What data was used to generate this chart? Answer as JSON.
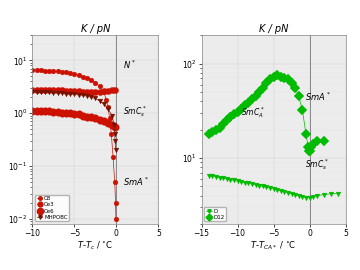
{
  "panel1": {
    "title": "K / pN",
    "xlabel": "T–Tₙ / °C",
    "xlim": [
      -10,
      5
    ],
    "ylim_log": [
      0.008,
      30
    ],
    "xticks": [
      -10,
      -5,
      0,
      5
    ],
    "yticks": [
      0.01,
      0.1,
      1,
      10
    ],
    "series": {
      "C8": {
        "color": "#cc1100",
        "marker": "o",
        "markersize": 3.5,
        "x": [
          -10,
          -9.5,
          -9,
          -8.5,
          -8,
          -7.5,
          -7,
          -6.5,
          -6,
          -5.5,
          -5,
          -4.5,
          -4,
          -3.5,
          -3,
          -2.5,
          -2,
          -1.5,
          -1.2,
          -1.0,
          -0.8,
          -0.6,
          -0.4,
          -0.2,
          -0.1,
          -0.05
        ],
        "y": [
          6.5,
          6.6,
          6.5,
          6.4,
          6.4,
          6.3,
          6.2,
          6.1,
          5.9,
          5.7,
          5.5,
          5.2,
          4.9,
          4.6,
          4.2,
          3.8,
          3.2,
          2.5,
          1.8,
          1.3,
          0.8,
          0.4,
          0.15,
          0.05,
          0.02,
          0.01
        ]
      },
      "Ce3": {
        "color": "#cc1100",
        "marker": "o",
        "markersize": 4.5,
        "x": [
          -10,
          -9.5,
          -9,
          -8.5,
          -8,
          -7.5,
          -7,
          -6.5,
          -6,
          -5.5,
          -5,
          -4.5,
          -4,
          -3.5,
          -3,
          -2.5,
          -2,
          -1.5,
          -1,
          -0.5,
          -0.2
        ],
        "y": [
          2.7,
          2.7,
          2.8,
          2.8,
          2.8,
          2.7,
          2.7,
          2.7,
          2.6,
          2.6,
          2.6,
          2.6,
          2.5,
          2.5,
          2.5,
          2.5,
          2.5,
          2.6,
          2.6,
          2.7,
          2.7
        ]
      },
      "Ce6": {
        "color": "#cc1100",
        "marker": "o",
        "markersize": 5.5,
        "x": [
          -10,
          -9.5,
          -9,
          -8.5,
          -8,
          -7.5,
          -7,
          -6.5,
          -6,
          -5.5,
          -5,
          -4.5,
          -4,
          -3.5,
          -3,
          -2.5,
          -2,
          -1.5,
          -1,
          -0.5,
          -0.2
        ],
        "y": [
          1.1,
          1.1,
          1.1,
          1.1,
          1.1,
          1.05,
          1.05,
          1.0,
          1.0,
          1.0,
          0.95,
          0.95,
          0.9,
          0.85,
          0.85,
          0.8,
          0.75,
          0.7,
          0.65,
          0.6,
          0.55
        ]
      },
      "MHPOBC": {
        "color": "#771100",
        "marker": "v",
        "markersize": 3.5,
        "x": [
          -10,
          -9.5,
          -9,
          -8.5,
          -8,
          -7.5,
          -7,
          -6.5,
          -6,
          -5.5,
          -5,
          -4.5,
          -4,
          -3.5,
          -3,
          -2.5,
          -2,
          -1.5,
          -1,
          -0.5,
          -0.3,
          -0.2,
          -0.15,
          -0.1
        ],
        "y": [
          2.5,
          2.5,
          2.5,
          2.5,
          2.5,
          2.4,
          2.4,
          2.4,
          2.3,
          2.3,
          2.3,
          2.2,
          2.2,
          2.1,
          2.0,
          1.9,
          1.7,
          1.5,
          1.2,
          0.9,
          0.6,
          0.4,
          0.3,
          0.2
        ]
      }
    },
    "vline_x": 0
  },
  "panel2": {
    "title": "K / pN",
    "xlabel": "T–T_CA* / °C",
    "xlim": [
      -15,
      5
    ],
    "ylim_log": [
      2,
      200
    ],
    "xticks": [
      -15,
      -10,
      -5,
      0,
      5
    ],
    "yticks": [
      10,
      100
    ],
    "series": {
      "D": {
        "color": "#00bb00",
        "marker": "v",
        "markersize": 3.5,
        "x": [
          -14,
          -13.5,
          -13,
          -12.5,
          -12,
          -11.5,
          -11,
          -10.5,
          -10,
          -9.5,
          -9,
          -8.5,
          -8,
          -7.5,
          -7,
          -6.5,
          -6,
          -5.5,
          -5,
          -4.5,
          -4,
          -3.5,
          -3,
          -2.5,
          -2,
          -1.5,
          -1,
          -0.5,
          0.0,
          0.5,
          1.0,
          2.0,
          3.0,
          4.0
        ],
        "y": [
          6.5,
          6.4,
          6.3,
          6.2,
          6.1,
          6.0,
          5.9,
          5.8,
          5.7,
          5.6,
          5.5,
          5.4,
          5.3,
          5.2,
          5.1,
          5.0,
          4.9,
          4.8,
          4.7,
          4.6,
          4.5,
          4.4,
          4.3,
          4.2,
          4.1,
          4.0,
          3.9,
          3.8,
          3.8,
          3.9,
          4.0,
          4.1,
          4.2,
          4.2
        ]
      },
      "D12": {
        "color": "#00bb00",
        "marker": "D",
        "markersize": 5,
        "x": [
          -14,
          -13.5,
          -13,
          -12.5,
          -12,
          -11.5,
          -11,
          -10.5,
          -10,
          -9.5,
          -9,
          -8.5,
          -8,
          -7.5,
          -7,
          -6.5,
          -6,
          -5.5,
          -5,
          -4.5,
          -4,
          -3.5,
          -3,
          -2.5,
          -2,
          -1.5,
          -1,
          -0.5,
          -0.2,
          -0.1,
          0.0,
          0.2,
          0.5,
          1.0,
          2.0
        ],
        "y": [
          18,
          19,
          20,
          21,
          23,
          25,
          27,
          29,
          31,
          33,
          36,
          38,
          42,
          45,
          50,
          55,
          62,
          68,
          72,
          75,
          72,
          70,
          68,
          63,
          55,
          45,
          32,
          18,
          13,
          12,
          12,
          13,
          14,
          15,
          15
        ]
      }
    },
    "vline_x": 0
  },
  "outer_bg": "#ffffff",
  "axes_bg": "#ececec"
}
